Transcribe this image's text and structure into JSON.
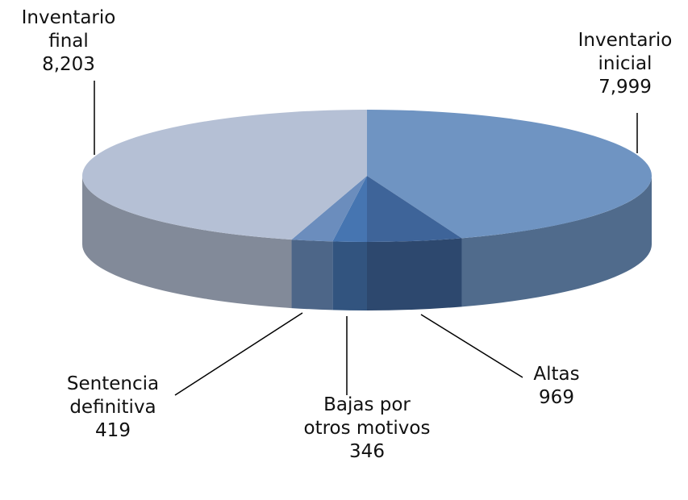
{
  "chart_data": {
    "type": "pie",
    "categories": [
      "Inventario inicial",
      "Altas",
      "Bajas por otros motivos",
      "Sentencia definitiva",
      "Inventario final"
    ],
    "values": [
      7999,
      969,
      346,
      419,
      8203
    ],
    "value_labels": [
      "7,999",
      "969",
      "346",
      "419",
      "8,203"
    ],
    "colors": [
      "#6f94c2",
      "#3e6499",
      "#4675b1",
      "#6b8dbd",
      "#b5c0d5"
    ]
  }
}
